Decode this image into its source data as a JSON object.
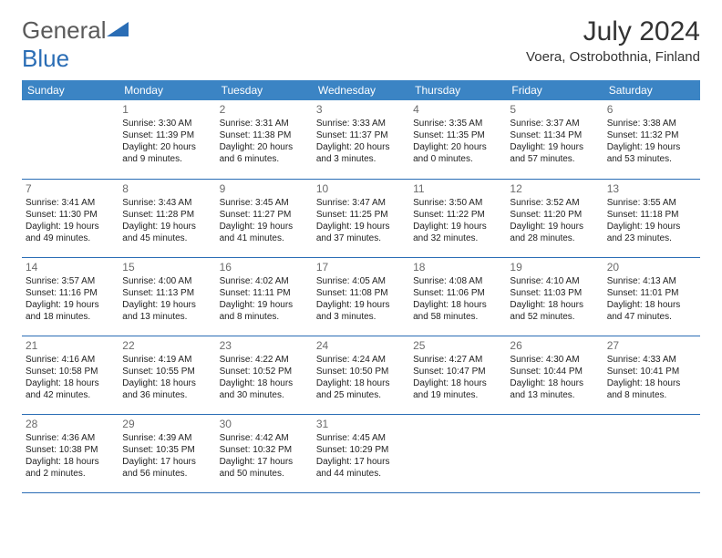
{
  "logo": {
    "text_a": "General",
    "text_b": "Blue"
  },
  "title": "July 2024",
  "location": "Voera, Ostrobothnia, Finland",
  "colors": {
    "header_bg": "#3b84c4",
    "header_text": "#ffffff",
    "border": "#2a6db5",
    "daynum": "#6b6b6b",
    "body_text": "#222222",
    "logo_gray": "#5a5a5a",
    "logo_blue": "#2a6db5"
  },
  "weekdays": [
    "Sunday",
    "Monday",
    "Tuesday",
    "Wednesday",
    "Thursday",
    "Friday",
    "Saturday"
  ],
  "start_offset": 1,
  "days": [
    {
      "n": 1,
      "sunrise": "3:30 AM",
      "sunset": "11:39 PM",
      "daylight": "20 hours and 9 minutes."
    },
    {
      "n": 2,
      "sunrise": "3:31 AM",
      "sunset": "11:38 PM",
      "daylight": "20 hours and 6 minutes."
    },
    {
      "n": 3,
      "sunrise": "3:33 AM",
      "sunset": "11:37 PM",
      "daylight": "20 hours and 3 minutes."
    },
    {
      "n": 4,
      "sunrise": "3:35 AM",
      "sunset": "11:35 PM",
      "daylight": "20 hours and 0 minutes."
    },
    {
      "n": 5,
      "sunrise": "3:37 AM",
      "sunset": "11:34 PM",
      "daylight": "19 hours and 57 minutes."
    },
    {
      "n": 6,
      "sunrise": "3:38 AM",
      "sunset": "11:32 PM",
      "daylight": "19 hours and 53 minutes."
    },
    {
      "n": 7,
      "sunrise": "3:41 AM",
      "sunset": "11:30 PM",
      "daylight": "19 hours and 49 minutes."
    },
    {
      "n": 8,
      "sunrise": "3:43 AM",
      "sunset": "11:28 PM",
      "daylight": "19 hours and 45 minutes."
    },
    {
      "n": 9,
      "sunrise": "3:45 AM",
      "sunset": "11:27 PM",
      "daylight": "19 hours and 41 minutes."
    },
    {
      "n": 10,
      "sunrise": "3:47 AM",
      "sunset": "11:25 PM",
      "daylight": "19 hours and 37 minutes."
    },
    {
      "n": 11,
      "sunrise": "3:50 AM",
      "sunset": "11:22 PM",
      "daylight": "19 hours and 32 minutes."
    },
    {
      "n": 12,
      "sunrise": "3:52 AM",
      "sunset": "11:20 PM",
      "daylight": "19 hours and 28 minutes."
    },
    {
      "n": 13,
      "sunrise": "3:55 AM",
      "sunset": "11:18 PM",
      "daylight": "19 hours and 23 minutes."
    },
    {
      "n": 14,
      "sunrise": "3:57 AM",
      "sunset": "11:16 PM",
      "daylight": "19 hours and 18 minutes."
    },
    {
      "n": 15,
      "sunrise": "4:00 AM",
      "sunset": "11:13 PM",
      "daylight": "19 hours and 13 minutes."
    },
    {
      "n": 16,
      "sunrise": "4:02 AM",
      "sunset": "11:11 PM",
      "daylight": "19 hours and 8 minutes."
    },
    {
      "n": 17,
      "sunrise": "4:05 AM",
      "sunset": "11:08 PM",
      "daylight": "19 hours and 3 minutes."
    },
    {
      "n": 18,
      "sunrise": "4:08 AM",
      "sunset": "11:06 PM",
      "daylight": "18 hours and 58 minutes."
    },
    {
      "n": 19,
      "sunrise": "4:10 AM",
      "sunset": "11:03 PM",
      "daylight": "18 hours and 52 minutes."
    },
    {
      "n": 20,
      "sunrise": "4:13 AM",
      "sunset": "11:01 PM",
      "daylight": "18 hours and 47 minutes."
    },
    {
      "n": 21,
      "sunrise": "4:16 AM",
      "sunset": "10:58 PM",
      "daylight": "18 hours and 42 minutes."
    },
    {
      "n": 22,
      "sunrise": "4:19 AM",
      "sunset": "10:55 PM",
      "daylight": "18 hours and 36 minutes."
    },
    {
      "n": 23,
      "sunrise": "4:22 AM",
      "sunset": "10:52 PM",
      "daylight": "18 hours and 30 minutes."
    },
    {
      "n": 24,
      "sunrise": "4:24 AM",
      "sunset": "10:50 PM",
      "daylight": "18 hours and 25 minutes."
    },
    {
      "n": 25,
      "sunrise": "4:27 AM",
      "sunset": "10:47 PM",
      "daylight": "18 hours and 19 minutes."
    },
    {
      "n": 26,
      "sunrise": "4:30 AM",
      "sunset": "10:44 PM",
      "daylight": "18 hours and 13 minutes."
    },
    {
      "n": 27,
      "sunrise": "4:33 AM",
      "sunset": "10:41 PM",
      "daylight": "18 hours and 8 minutes."
    },
    {
      "n": 28,
      "sunrise": "4:36 AM",
      "sunset": "10:38 PM",
      "daylight": "18 hours and 2 minutes."
    },
    {
      "n": 29,
      "sunrise": "4:39 AM",
      "sunset": "10:35 PM",
      "daylight": "17 hours and 56 minutes."
    },
    {
      "n": 30,
      "sunrise": "4:42 AM",
      "sunset": "10:32 PM",
      "daylight": "17 hours and 50 minutes."
    },
    {
      "n": 31,
      "sunrise": "4:45 AM",
      "sunset": "10:29 PM",
      "daylight": "17 hours and 44 minutes."
    }
  ],
  "labels": {
    "sunrise": "Sunrise:",
    "sunset": "Sunset:",
    "daylight": "Daylight:"
  }
}
